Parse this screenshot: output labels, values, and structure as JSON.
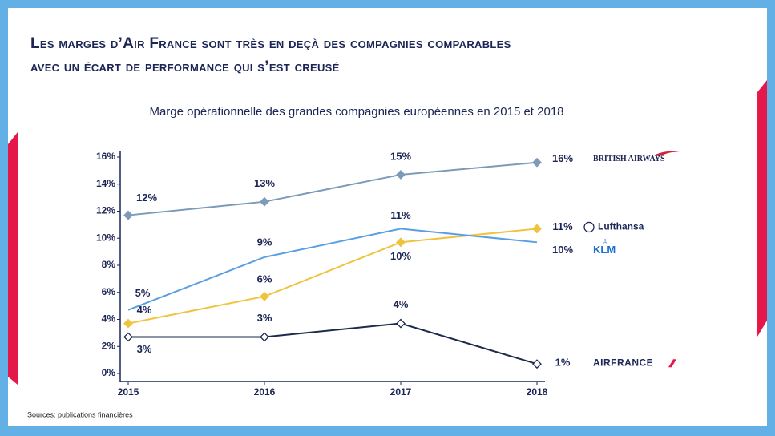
{
  "title": [
    "Les marges d’Air France sont très en deçà des compagnies comparables",
    "avec un écart de performance qui s’est creusé"
  ],
  "source": "Sources: publications financières",
  "chart_data": {
    "type": "line",
    "title": "Marge opérationnelle des grandes compagnies européennes en 2015 et 2018",
    "categories": [
      "2015",
      "2016",
      "2017",
      "2018"
    ],
    "ylim": [
      0,
      16
    ],
    "yticks": [
      {
        "value": 0,
        "label": "0%"
      },
      {
        "value": 2,
        "label": "2%"
      },
      {
        "value": 4,
        "label": "4%"
      },
      {
        "value": 6,
        "label": "6%"
      },
      {
        "value": 8,
        "label": "8%"
      },
      {
        "value": 10,
        "label": "10%"
      },
      {
        "value": 12,
        "label": "12%"
      },
      {
        "value": 14,
        "label": "14%"
      },
      {
        "value": 16,
        "label": "16%"
      }
    ],
    "series": [
      {
        "name": "BRITISH AIRWAYS",
        "color": "#7d9bb9",
        "marker": "filled",
        "values": [
          11.7,
          12.7,
          14.7,
          15.6
        ],
        "value_labels": [
          "12%",
          "13%",
          "15%",
          "16%"
        ]
      },
      {
        "name": "Lufthansa",
        "color": "#f0c33c",
        "marker": "filled",
        "values": [
          3.7,
          5.7,
          9.7,
          10.7
        ],
        "value_labels": [
          "4%",
          "6%",
          "10%",
          "11%"
        ]
      },
      {
        "name": "KLM",
        "color": "#5a9fe2",
        "marker": "none",
        "values": [
          4.7,
          8.6,
          10.7,
          9.7
        ],
        "value_labels": [
          "5%",
          "9%",
          "11%",
          "10%"
        ]
      },
      {
        "name": "AIRFRANCE",
        "color": "#1b2a4a",
        "marker": "hollow",
        "values": [
          2.7,
          2.7,
          3.7,
          0.7
        ],
        "value_labels": [
          "3%",
          "3%",
          "4%",
          "1%"
        ]
      }
    ]
  }
}
